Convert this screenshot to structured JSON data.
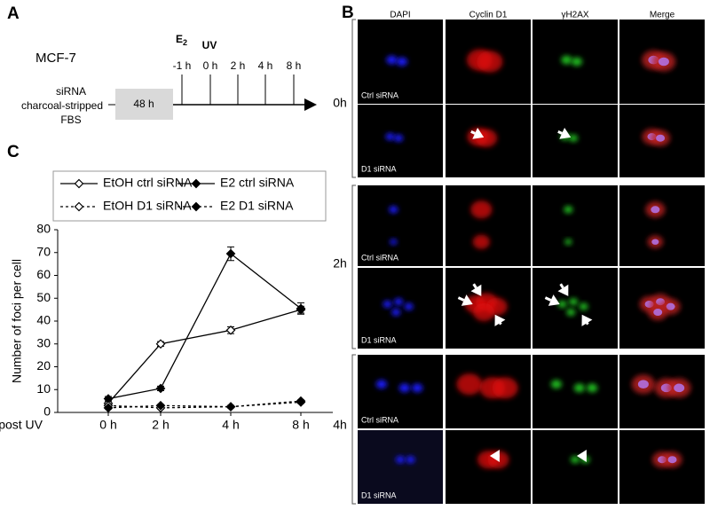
{
  "panel_a": {
    "letter": "A",
    "cell_line": "MCF-7",
    "treatment": [
      "siRNA",
      "charcoal-stripped",
      "FBS"
    ],
    "duration": "48 h",
    "e2": {
      "base": "E",
      "sub": "2"
    },
    "uv": "UV",
    "timepoints": [
      "-1 h",
      "0 h",
      "2 h",
      "4 h",
      "8 h"
    ]
  },
  "panel_b": {
    "letter": "B",
    "columns": [
      "DAPI",
      "Cyclin D1",
      "γH2AX",
      "Merge"
    ],
    "groups": [
      {
        "label": "0h",
        "rows": [
          "Ctrl siRNA",
          "D1 siRNA"
        ]
      },
      {
        "label": "2h",
        "rows": [
          "Ctrl siRNA",
          "D1 siRNA"
        ]
      },
      {
        "label": "4h",
        "rows": [
          "Ctrl siRNA",
          "D1 siRNA"
        ]
      }
    ]
  },
  "chart_data": {
    "type": "line",
    "letter": "C",
    "y_label": "Number of foci per cell",
    "x_label": "post UV",
    "categories": [
      "0 h",
      "2 h",
      "4 h",
      "8 h"
    ],
    "ylim": [
      0,
      80
    ],
    "yticks": [
      0,
      10,
      20,
      30,
      40,
      50,
      60,
      70,
      80
    ],
    "series": [
      {
        "name": "EtOH ctrl siRNA",
        "color": "#000000",
        "marker": "open",
        "dashed": false,
        "values": [
          4,
          30,
          36,
          45
        ],
        "errors": [
          1,
          1,
          1.5,
          1.5
        ]
      },
      {
        "name": "E2 ctrl siRNA",
        "color": "#000000",
        "marker": "filled",
        "dashed": false,
        "values": [
          6,
          10.5,
          69.5,
          45.5
        ],
        "errors": [
          1,
          1,
          3,
          2.5
        ]
      },
      {
        "name": "EtOH D1 siRNA",
        "color": "#000000",
        "marker": "open",
        "dashed": true,
        "values": [
          3,
          2,
          2.5,
          4.5
        ],
        "errors": [
          0.5,
          0.5,
          0.5,
          0.5
        ]
      },
      {
        "name": "E2 D1 siRNA",
        "color": "#000000",
        "marker": "filled",
        "dashed": true,
        "values": [
          2,
          3,
          2.5,
          5
        ],
        "errors": [
          0.5,
          0.5,
          0.5,
          0.5
        ]
      }
    ]
  }
}
